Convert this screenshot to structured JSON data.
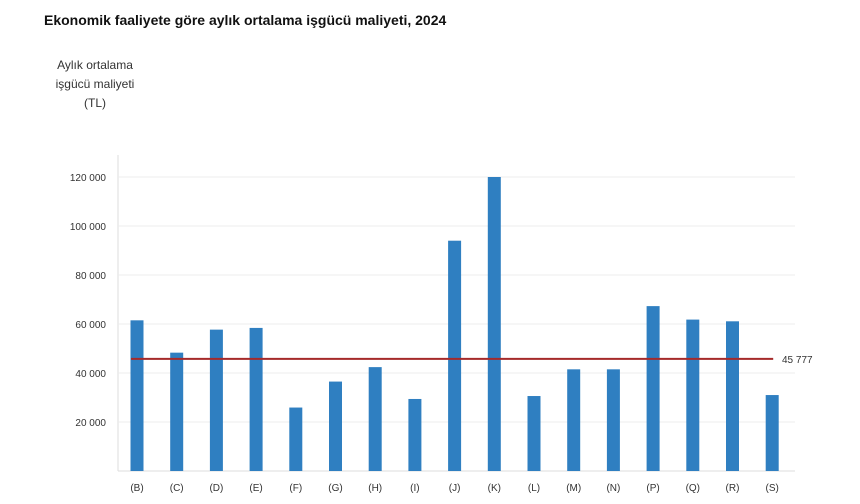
{
  "chart_data": {
    "type": "bar",
    "title": "Ekonomik faaliyete göre aylık ortalama işgücü maliyeti, 2024",
    "ylabel": "Aylık ortalama\nişgücü maliyeti\n(TL)",
    "xlabel": "",
    "categories": [
      "(B)",
      "(C)",
      "(D)",
      "(E)",
      "(F)",
      "(G)",
      "(H)",
      "(I)",
      "(J)",
      "(K)",
      "(L)",
      "(M)",
      "(N)",
      "(P)",
      "(Q)",
      "(R)",
      "(S)"
    ],
    "values": [
      61500,
      48300,
      57700,
      58400,
      25900,
      36500,
      42400,
      29400,
      94000,
      120000,
      30600,
      41500,
      41500,
      67300,
      61800,
      61100,
      31000
    ],
    "ylim": [
      0,
      130000
    ],
    "yticks": [
      20000,
      40000,
      60000,
      80000,
      100000,
      120000
    ],
    "ytick_labels": [
      "20 000",
      "40 000",
      "60 000",
      "80 000",
      "100 000",
      "120 000"
    ],
    "grid": true,
    "reference_line": {
      "value": 45777,
      "label": "45 777",
      "color": "#a52a2a"
    },
    "bar_color": "#2f7fc1"
  }
}
